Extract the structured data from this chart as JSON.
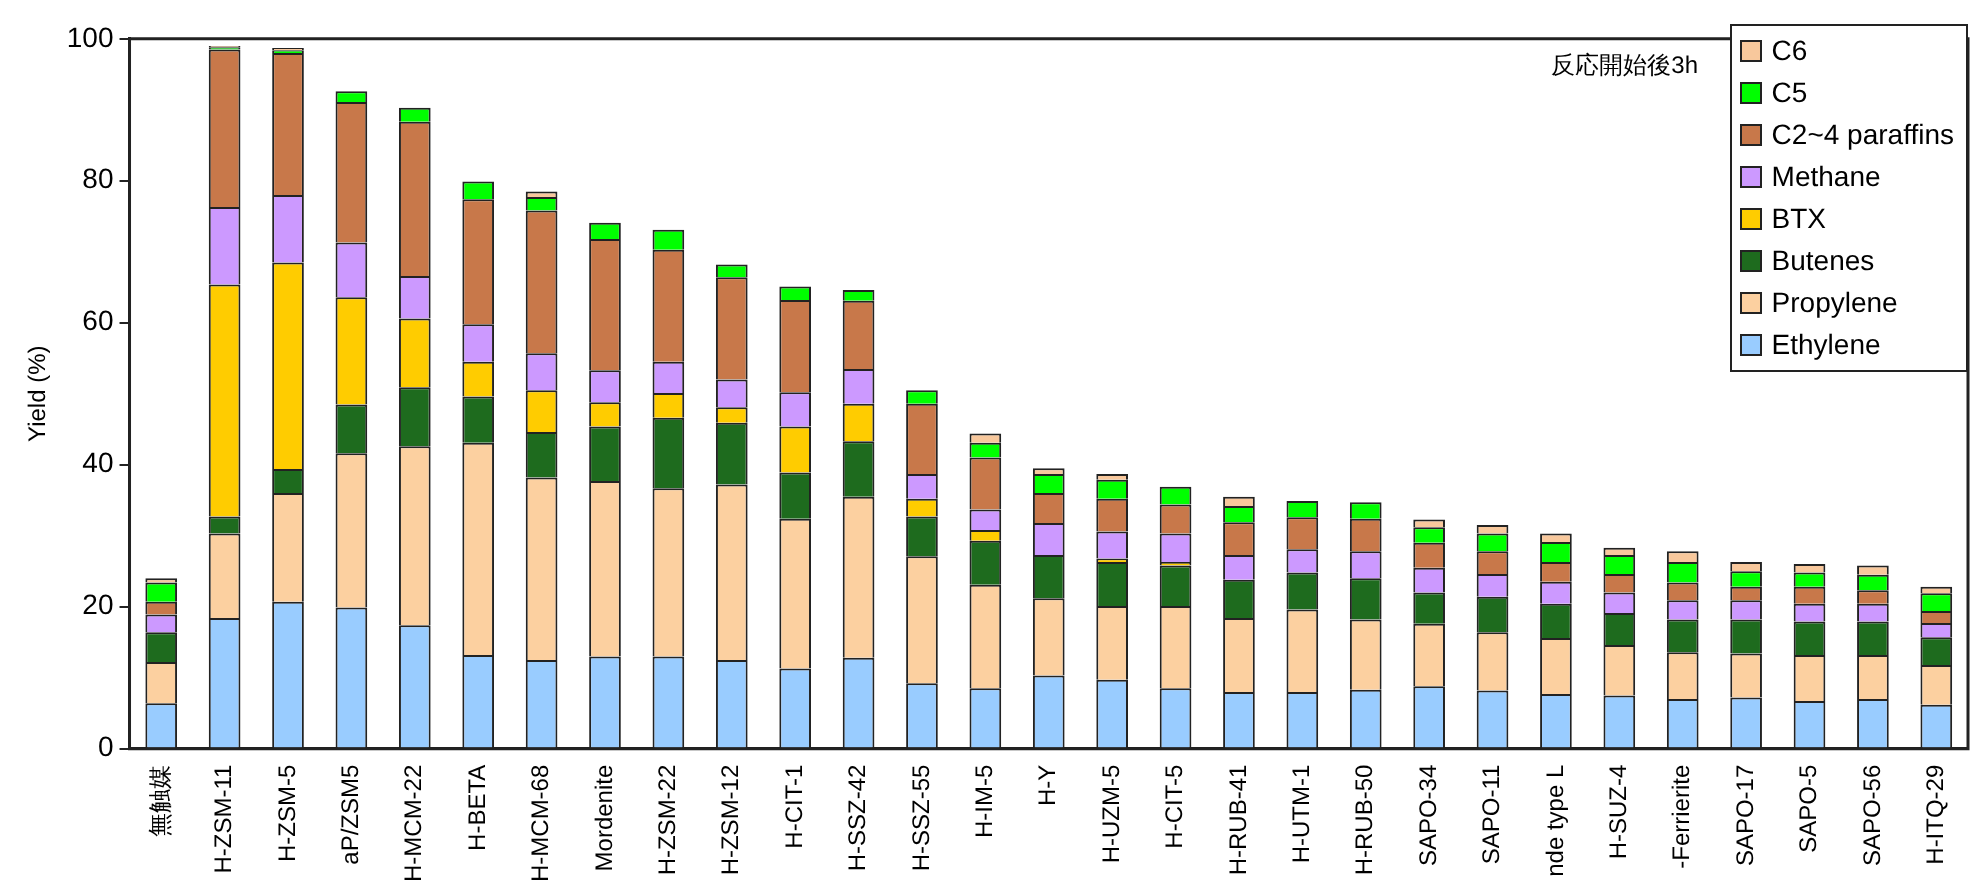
{
  "chart_data": {
    "type": "bar",
    "stacked": true,
    "ylabel": "Yield (%)",
    "annotations": [
      "反応開始後3h"
    ],
    "categories": [
      "無触媒",
      "H-ZSM-11",
      "H-ZSM-5",
      "aP/ZSM5",
      "H-MCM-22",
      "H-BETA",
      "H-MCM-68",
      "Mordenite",
      "H-ZSM-22",
      "H-ZSM-12",
      "H-CIT-1",
      "H-SSZ-42",
      "H-SSZ-55",
      "H-IM-5",
      "H-Y",
      "H-UZM-5",
      "H-CIT-5",
      "H-RUB-41",
      "H-UTM-1",
      "H-RUB-50",
      "SAPO-34",
      "SAPO-11",
      "nde type L",
      "H-SUZ-4",
      "-Ferrierite",
      "SAPO-17",
      "SAPO-5",
      "SAPO-56",
      "H-ITQ-29"
    ],
    "series": [
      {
        "name": "Ethylene",
        "color": "#99ccff",
        "values": [
          6.4,
          18.4,
          20.7,
          19.9,
          17.4,
          13.2,
          12.5,
          13.0,
          13.0,
          12.5,
          11.3,
          12.8,
          9.2,
          8.5,
          10.3,
          9.7,
          8.5,
          8.0,
          8.0,
          8.3,
          8.8,
          8.2,
          7.7,
          7.5,
          7.0,
          7.2,
          6.7,
          7.0,
          6.2
        ]
      },
      {
        "name": "Propylene",
        "color": "#fcd0a0",
        "values": [
          5.8,
          11.9,
          15.3,
          21.7,
          25.2,
          29.9,
          25.7,
          24.7,
          23.7,
          24.7,
          21.1,
          22.7,
          17.9,
          14.6,
          10.9,
          10.4,
          11.6,
          10.4,
          11.6,
          9.9,
          8.8,
          8.2,
          7.9,
          7.1,
          6.6,
          6.2,
          6.5,
          6.2,
          5.6
        ]
      },
      {
        "name": "Butenes",
        "color": "#1e6b1e",
        "values": [
          4.2,
          2.4,
          3.4,
          6.9,
          8.3,
          6.5,
          6.4,
          7.7,
          9.9,
          8.7,
          6.5,
          7.8,
          5.6,
          6.2,
          6.1,
          6.2,
          5.7,
          5.4,
          5.2,
          5.8,
          4.4,
          5.0,
          4.8,
          4.5,
          4.6,
          4.8,
          4.7,
          4.7,
          3.9
        ]
      },
      {
        "name": "BTX",
        "color": "#ffcc00",
        "values": [
          0,
          32.7,
          29.1,
          15.1,
          9.7,
          4.9,
          5.9,
          3.4,
          3.5,
          2.2,
          6.5,
          5.3,
          2.5,
          1.5,
          0,
          0.5,
          0.5,
          0,
          0,
          0,
          0,
          0,
          0,
          0,
          0,
          0,
          0,
          0,
          0
        ]
      },
      {
        "name": "Methane",
        "color": "#cc99ff",
        "values": [
          2.5,
          10.9,
          9.5,
          7.7,
          6.0,
          5.3,
          5.2,
          4.5,
          4.4,
          3.9,
          4.8,
          4.9,
          3.5,
          2.9,
          4.5,
          3.8,
          4.0,
          3.5,
          3.3,
          3.8,
          3.5,
          3.2,
          3.1,
          2.9,
          2.7,
          2.7,
          2.5,
          2.5,
          2.0
        ]
      },
      {
        "name": "C2~4 paraffins",
        "color": "#c8784a",
        "values": [
          1.8,
          22.2,
          20.0,
          19.8,
          21.7,
          17.6,
          20.1,
          18.5,
          15.8,
          14.4,
          13.0,
          9.6,
          9.9,
          7.3,
          4.2,
          4.6,
          4.1,
          4.6,
          4.5,
          4.6,
          3.5,
          3.2,
          2.8,
          2.6,
          2.5,
          1.9,
          2.4,
          1.9,
          1.7
        ]
      },
      {
        "name": "C5",
        "color": "#00ff00",
        "values": [
          2.7,
          0.3,
          0.4,
          1.5,
          2.0,
          2.5,
          1.9,
          2.3,
          2.8,
          1.8,
          1.9,
          1.5,
          1.9,
          2.1,
          2.7,
          2.7,
          2.5,
          2.3,
          2.3,
          2.3,
          2.2,
          2.5,
          2.8,
          2.7,
          2.9,
          2.2,
          2.0,
          2.2,
          2.5
        ]
      },
      {
        "name": "C6",
        "color": "#f8c89c",
        "values": [
          0.6,
          0.2,
          0.3,
          0,
          0,
          0,
          0.8,
          0,
          0,
          0,
          0,
          0,
          0,
          1.3,
          0.8,
          0.8,
          0,
          1.3,
          0,
          0,
          1.1,
          1.2,
          1.2,
          1.0,
          1.5,
          1.3,
          1.2,
          1.3,
          0.9
        ]
      }
    ],
    "ylim": [
      0,
      100
    ],
    "yticks": [
      0,
      20,
      40,
      60,
      80,
      100
    ],
    "grid": false,
    "legend": "top right"
  }
}
